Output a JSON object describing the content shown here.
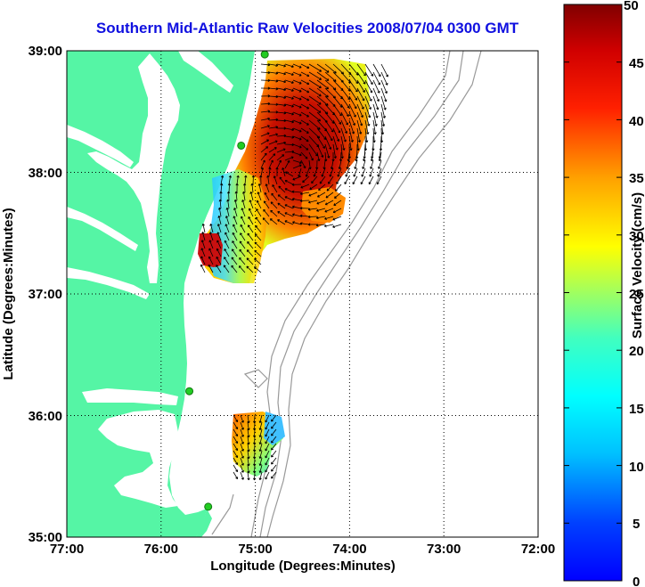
{
  "title": "Southern Mid-Atlantic Raw Velocities 2008/07/04 0300 GMT",
  "x_axis": {
    "label": "Longitude (Degrees:Minutes)",
    "ticks": [
      "77:00",
      "76:00",
      "75:00",
      "74:00",
      "73:00",
      "72:00"
    ]
  },
  "y_axis": {
    "label": "Latitude (Degrees:Minutes)",
    "ticks": [
      "39:00",
      "38:00",
      "37:00",
      "36:00",
      "35:00"
    ]
  },
  "colorbar": {
    "label": "Surface Velocity (cm/s)",
    "ticks": [
      "50",
      "45",
      "40",
      "35",
      "30",
      "25",
      "20",
      "15",
      "10",
      "5",
      "0"
    ],
    "min": 0,
    "max": 50,
    "colormap": "jet"
  },
  "map_extent": {
    "lon_west": -77,
    "lon_east": -72,
    "lat_south": 35,
    "lat_north": 39
  },
  "colors": {
    "land": "#55f5a5",
    "ocean": "#ffffff",
    "title": "#1010e0",
    "bathymetry": "#999999",
    "grid": "#000000",
    "stations": "#22cc22"
  },
  "grid": "dotted",
  "stations": [
    {
      "lon": -74.9,
      "lat": 38.97
    },
    {
      "lon": -75.15,
      "lat": 38.22
    },
    {
      "lon": -75.7,
      "lat": 36.2
    },
    {
      "lon": -75.5,
      "lat": 35.25
    }
  ]
}
